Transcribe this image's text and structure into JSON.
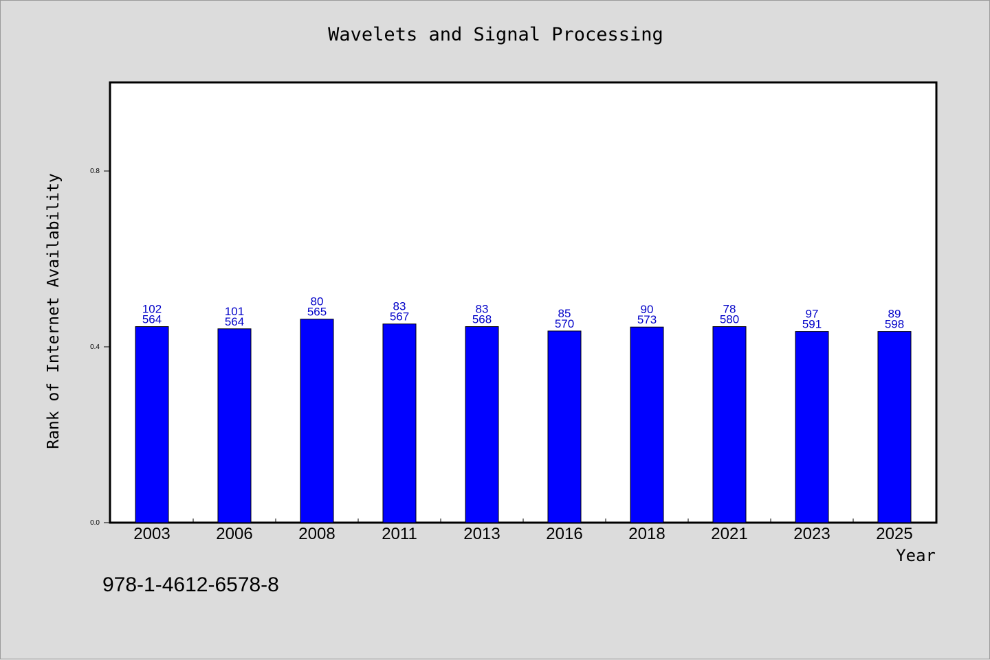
{
  "chart_data": {
    "type": "bar",
    "title": "Wavelets and Signal Processing",
    "xlabel": "Year",
    "ylabel": "Rank of Internet Availability",
    "annotation": "978-1-4612-6578-8",
    "categories": [
      "2003",
      "2006",
      "2008",
      "2011",
      "2013",
      "2016",
      "2018",
      "2021",
      "2023",
      "2025"
    ],
    "values": [
      0.446,
      0.441,
      0.463,
      0.452,
      0.446,
      0.436,
      0.445,
      0.446,
      0.435,
      0.435
    ],
    "labels_top": [
      "102",
      "101",
      "80",
      "83",
      "83",
      "85",
      "90",
      "78",
      "97",
      "89"
    ],
    "labels_bottom": [
      "564",
      "564",
      "565",
      "567",
      "568",
      "570",
      "573",
      "580",
      "591",
      "598"
    ],
    "ylim": [
      0,
      1.0
    ],
    "yticks": [
      0.0,
      0.4,
      0.8
    ],
    "ytick_labels": [
      "0.0",
      "0.4",
      "0.8"
    ],
    "grid": false,
    "legend": "none",
    "colors": {
      "bar": "#0000ff",
      "data_label": "#0000c8",
      "background": "#dcdcdc",
      "plot_background": "#ffffff"
    }
  }
}
